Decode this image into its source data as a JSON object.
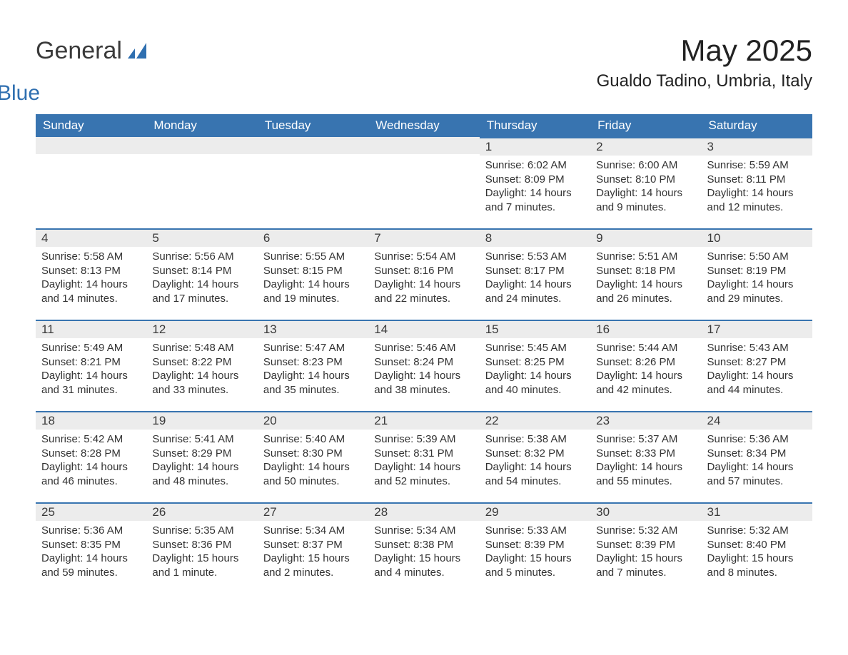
{
  "logo": {
    "word1": "General",
    "word2": "Blue",
    "icon_color": "#2f6fb0"
  },
  "title": "May 2025",
  "location": "Gualdo Tadino, Umbria, Italy",
  "colors": {
    "header_bg": "#3874b0",
    "header_text": "#ffffff",
    "daybar_bg": "#ececec",
    "daybar_border": "#3874b0",
    "body_text": "#333333",
    "page_bg": "#ffffff"
  },
  "day_headers": [
    "Sunday",
    "Monday",
    "Tuesday",
    "Wednesday",
    "Thursday",
    "Friday",
    "Saturday"
  ],
  "weeks": [
    [
      null,
      null,
      null,
      null,
      {
        "n": "1",
        "sunrise": "Sunrise: 6:02 AM",
        "sunset": "Sunset: 8:09 PM",
        "daylight": "Daylight: 14 hours and 7 minutes."
      },
      {
        "n": "2",
        "sunrise": "Sunrise: 6:00 AM",
        "sunset": "Sunset: 8:10 PM",
        "daylight": "Daylight: 14 hours and 9 minutes."
      },
      {
        "n": "3",
        "sunrise": "Sunrise: 5:59 AM",
        "sunset": "Sunset: 8:11 PM",
        "daylight": "Daylight: 14 hours and 12 minutes."
      }
    ],
    [
      {
        "n": "4",
        "sunrise": "Sunrise: 5:58 AM",
        "sunset": "Sunset: 8:13 PM",
        "daylight": "Daylight: 14 hours and 14 minutes."
      },
      {
        "n": "5",
        "sunrise": "Sunrise: 5:56 AM",
        "sunset": "Sunset: 8:14 PM",
        "daylight": "Daylight: 14 hours and 17 minutes."
      },
      {
        "n": "6",
        "sunrise": "Sunrise: 5:55 AM",
        "sunset": "Sunset: 8:15 PM",
        "daylight": "Daylight: 14 hours and 19 minutes."
      },
      {
        "n": "7",
        "sunrise": "Sunrise: 5:54 AM",
        "sunset": "Sunset: 8:16 PM",
        "daylight": "Daylight: 14 hours and 22 minutes."
      },
      {
        "n": "8",
        "sunrise": "Sunrise: 5:53 AM",
        "sunset": "Sunset: 8:17 PM",
        "daylight": "Daylight: 14 hours and 24 minutes."
      },
      {
        "n": "9",
        "sunrise": "Sunrise: 5:51 AM",
        "sunset": "Sunset: 8:18 PM",
        "daylight": "Daylight: 14 hours and 26 minutes."
      },
      {
        "n": "10",
        "sunrise": "Sunrise: 5:50 AM",
        "sunset": "Sunset: 8:19 PM",
        "daylight": "Daylight: 14 hours and 29 minutes."
      }
    ],
    [
      {
        "n": "11",
        "sunrise": "Sunrise: 5:49 AM",
        "sunset": "Sunset: 8:21 PM",
        "daylight": "Daylight: 14 hours and 31 minutes."
      },
      {
        "n": "12",
        "sunrise": "Sunrise: 5:48 AM",
        "sunset": "Sunset: 8:22 PM",
        "daylight": "Daylight: 14 hours and 33 minutes."
      },
      {
        "n": "13",
        "sunrise": "Sunrise: 5:47 AM",
        "sunset": "Sunset: 8:23 PM",
        "daylight": "Daylight: 14 hours and 35 minutes."
      },
      {
        "n": "14",
        "sunrise": "Sunrise: 5:46 AM",
        "sunset": "Sunset: 8:24 PM",
        "daylight": "Daylight: 14 hours and 38 minutes."
      },
      {
        "n": "15",
        "sunrise": "Sunrise: 5:45 AM",
        "sunset": "Sunset: 8:25 PM",
        "daylight": "Daylight: 14 hours and 40 minutes."
      },
      {
        "n": "16",
        "sunrise": "Sunrise: 5:44 AM",
        "sunset": "Sunset: 8:26 PM",
        "daylight": "Daylight: 14 hours and 42 minutes."
      },
      {
        "n": "17",
        "sunrise": "Sunrise: 5:43 AM",
        "sunset": "Sunset: 8:27 PM",
        "daylight": "Daylight: 14 hours and 44 minutes."
      }
    ],
    [
      {
        "n": "18",
        "sunrise": "Sunrise: 5:42 AM",
        "sunset": "Sunset: 8:28 PM",
        "daylight": "Daylight: 14 hours and 46 minutes."
      },
      {
        "n": "19",
        "sunrise": "Sunrise: 5:41 AM",
        "sunset": "Sunset: 8:29 PM",
        "daylight": "Daylight: 14 hours and 48 minutes."
      },
      {
        "n": "20",
        "sunrise": "Sunrise: 5:40 AM",
        "sunset": "Sunset: 8:30 PM",
        "daylight": "Daylight: 14 hours and 50 minutes."
      },
      {
        "n": "21",
        "sunrise": "Sunrise: 5:39 AM",
        "sunset": "Sunset: 8:31 PM",
        "daylight": "Daylight: 14 hours and 52 minutes."
      },
      {
        "n": "22",
        "sunrise": "Sunrise: 5:38 AM",
        "sunset": "Sunset: 8:32 PM",
        "daylight": "Daylight: 14 hours and 54 minutes."
      },
      {
        "n": "23",
        "sunrise": "Sunrise: 5:37 AM",
        "sunset": "Sunset: 8:33 PM",
        "daylight": "Daylight: 14 hours and 55 minutes."
      },
      {
        "n": "24",
        "sunrise": "Sunrise: 5:36 AM",
        "sunset": "Sunset: 8:34 PM",
        "daylight": "Daylight: 14 hours and 57 minutes."
      }
    ],
    [
      {
        "n": "25",
        "sunrise": "Sunrise: 5:36 AM",
        "sunset": "Sunset: 8:35 PM",
        "daylight": "Daylight: 14 hours and 59 minutes."
      },
      {
        "n": "26",
        "sunrise": "Sunrise: 5:35 AM",
        "sunset": "Sunset: 8:36 PM",
        "daylight": "Daylight: 15 hours and 1 minute."
      },
      {
        "n": "27",
        "sunrise": "Sunrise: 5:34 AM",
        "sunset": "Sunset: 8:37 PM",
        "daylight": "Daylight: 15 hours and 2 minutes."
      },
      {
        "n": "28",
        "sunrise": "Sunrise: 5:34 AM",
        "sunset": "Sunset: 8:38 PM",
        "daylight": "Daylight: 15 hours and 4 minutes."
      },
      {
        "n": "29",
        "sunrise": "Sunrise: 5:33 AM",
        "sunset": "Sunset: 8:39 PM",
        "daylight": "Daylight: 15 hours and 5 minutes."
      },
      {
        "n": "30",
        "sunrise": "Sunrise: 5:32 AM",
        "sunset": "Sunset: 8:39 PM",
        "daylight": "Daylight: 15 hours and 7 minutes."
      },
      {
        "n": "31",
        "sunrise": "Sunrise: 5:32 AM",
        "sunset": "Sunset: 8:40 PM",
        "daylight": "Daylight: 15 hours and 8 minutes."
      }
    ]
  ]
}
